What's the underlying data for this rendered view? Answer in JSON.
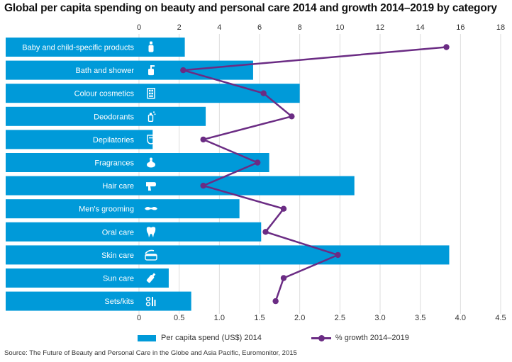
{
  "title": "Global per capita spending on beauty and personal care 2014 and growth 2014–2019 by category",
  "source": "Source: The Future of Beauty and Personal Care in the Globe and Asia Pacific, Euromonitor, 2015",
  "colors": {
    "bar": "#009ad9",
    "line": "#6b2c84",
    "grid": "#dddddd"
  },
  "legend": {
    "bar_label": "Per capita spend (US$) 2014",
    "line_label": "% growth 2014–2019"
  },
  "chart_data": {
    "type": "bar",
    "orientation": "horizontal",
    "categories": [
      "Baby and child-specific products",
      "Bath and shower",
      "Colour cosmetics",
      "Deodorants",
      "Depilatories",
      "Fragrances",
      "Hair care",
      "Men's grooming",
      "Oral care",
      "Skin care",
      "Sun care",
      "Sets/kits"
    ],
    "icons": [
      "baby-bottle-icon",
      "soap-dispenser-icon",
      "palette-icon",
      "spray-can-icon",
      "razor-cartridge-icon",
      "perfume-bottle-icon",
      "hair-dryer-icon",
      "moustache-icon",
      "tooth-icon",
      "cream-jar-icon",
      "sunscreen-bottle-icon",
      "kit-icon"
    ],
    "series": [
      {
        "name": "Per capita spend (US$) 2014",
        "type": "bar",
        "axis": "bottom",
        "values": [
          0.57,
          1.42,
          2.0,
          0.83,
          0.17,
          1.62,
          2.68,
          1.25,
          1.52,
          3.86,
          0.37,
          0.65
        ]
      },
      {
        "name": "% growth 2014–2019",
        "type": "line",
        "axis": "top",
        "values": [
          15.3,
          2.2,
          6.2,
          7.6,
          3.2,
          5.9,
          3.2,
          7.2,
          6.3,
          9.9,
          7.2,
          6.8
        ]
      }
    ],
    "bottom_axis": {
      "min": 0,
      "max": 4.5,
      "ticks": [
        "0",
        "0.5",
        "1.0",
        "1.5",
        "2.0",
        "2.5",
        "3.0",
        "3.5",
        "4.0",
        "4.5"
      ]
    },
    "top_axis": {
      "min": 0,
      "max": 18,
      "ticks": [
        "0",
        "2",
        "4",
        "6",
        "8",
        "10",
        "12",
        "14",
        "16",
        "18"
      ]
    },
    "grid": true,
    "legend_position": "bottom"
  }
}
